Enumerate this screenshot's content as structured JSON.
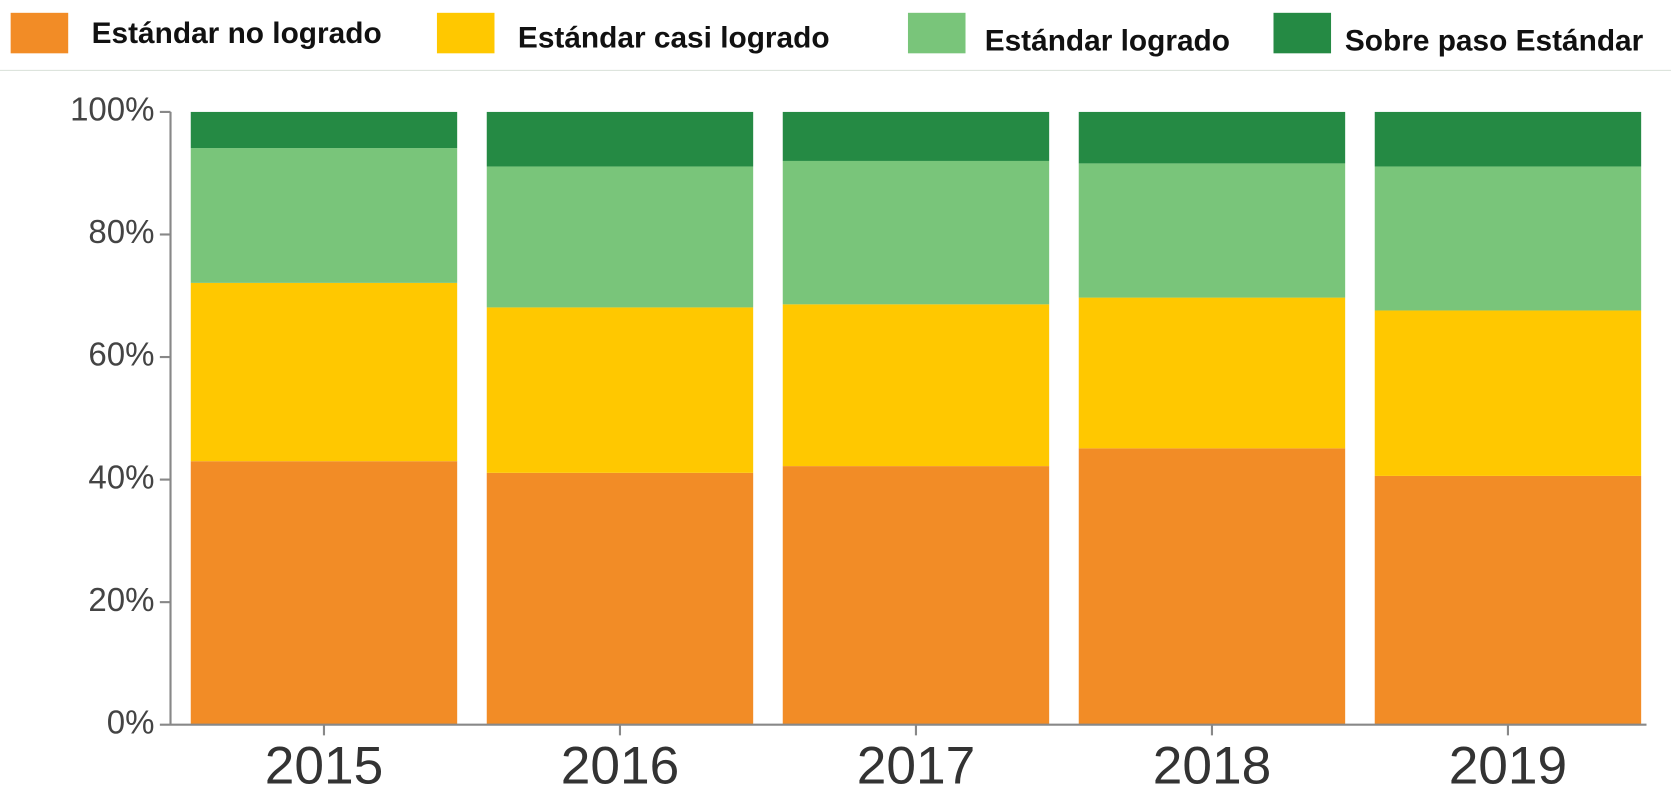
{
  "chart_data": {
    "type": "stacked_bar",
    "categories": [
      "2015",
      "2016",
      "2017",
      "2018",
      "2019"
    ],
    "series": [
      {
        "name": "Estándar no logrado",
        "color": "#f28c26",
        "values": [
          43.0,
          41.1,
          42.2,
          45.1,
          40.6
        ]
      },
      {
        "name": "Estándar casi logrado",
        "color": "#ffc800",
        "values": [
          29.1,
          27.0,
          26.4,
          24.6,
          27.0
        ]
      },
      {
        "name": "Estándar logrado",
        "color": "#79c57a",
        "values": [
          22.0,
          23.0,
          23.4,
          21.9,
          23.5
        ]
      },
      {
        "name": "Sobre paso Estándar",
        "color": "#258a44",
        "values": [
          5.9,
          8.9,
          8.0,
          8.4,
          8.9
        ]
      }
    ],
    "ylim": [
      0,
      100
    ],
    "yticks": [
      {
        "value": 0,
        "label": "0%"
      },
      {
        "value": 20,
        "label": "20%"
      },
      {
        "value": 40,
        "label": "40%"
      },
      {
        "value": 60,
        "label": "60%"
      },
      {
        "value": 80,
        "label": "80%"
      },
      {
        "value": 100,
        "label": "100%"
      }
    ]
  }
}
